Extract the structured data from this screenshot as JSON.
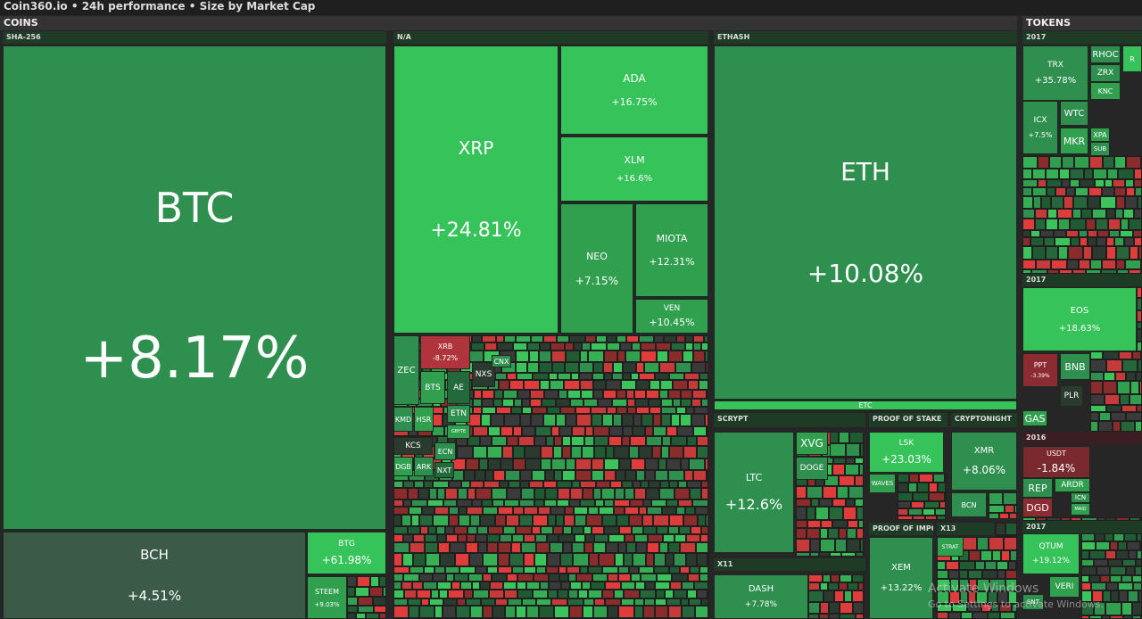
{
  "header": {
    "title": "Coin360.io • 24h performance • Size by Market Cap"
  },
  "sections": [
    {
      "label": "COINS"
    },
    {
      "label": "TOKENS"
    }
  ],
  "groups": [
    {
      "label": "SHA-256"
    },
    {
      "label": "N/A"
    },
    {
      "label": "ETHASH"
    },
    {
      "label": "SCRYPT"
    },
    {
      "label": "PROOF OF STAKE"
    },
    {
      "label": "CRYPTONIGHT"
    },
    {
      "label": "X11"
    },
    {
      "label": "PROOF OF IMPOR"
    },
    {
      "label": "X13"
    },
    {
      "label": "2017"
    },
    {
      "label": "2017"
    },
    {
      "label": "2016"
    },
    {
      "label": "2017"
    }
  ],
  "tiles": [
    {
      "name": "BTC",
      "change": "+8.17%"
    },
    {
      "name": "BCH",
      "change": "+4.51%"
    },
    {
      "name": "BTG",
      "change": "+61.98%"
    },
    {
      "name": "STEEM",
      "change": "+9.03%"
    },
    {
      "name": "XRP",
      "change": "+24.81%"
    },
    {
      "name": "ADA",
      "change": "+16.75%"
    },
    {
      "name": "XLM",
      "change": "+16.6%"
    },
    {
      "name": "NEO",
      "change": "+7.15%"
    },
    {
      "name": "MIOTA",
      "change": "+12.31%"
    },
    {
      "name": "VEN",
      "change": "+10.45%"
    },
    {
      "name": "XRB",
      "change": "-8.72%"
    },
    {
      "name": "ZEC"
    },
    {
      "name": "BTS"
    },
    {
      "name": "AE"
    },
    {
      "name": "NXS"
    },
    {
      "name": "CNX"
    },
    {
      "name": "KMD"
    },
    {
      "name": "HSR"
    },
    {
      "name": "ETN"
    },
    {
      "name": "GBYTE"
    },
    {
      "name": "KCS"
    },
    {
      "name": "ECN"
    },
    {
      "name": "DGB"
    },
    {
      "name": "ARK"
    },
    {
      "name": "NXT"
    },
    {
      "name": "ETH",
      "change": "+10.08%"
    },
    {
      "name": "ETC"
    },
    {
      "name": "LTC",
      "change": "+12.6%"
    },
    {
      "name": "XVG"
    },
    {
      "name": "DOGE"
    },
    {
      "name": "LSK",
      "change": "+23.03%"
    },
    {
      "name": "WAVES"
    },
    {
      "name": "XMR",
      "change": "+8.06%"
    },
    {
      "name": "BCN"
    },
    {
      "name": "DASH",
      "change": "+7.78%"
    },
    {
      "name": "XEM",
      "change": "+13.22%"
    },
    {
      "name": "STRAT"
    },
    {
      "name": "TRX",
      "change": "+35.78%"
    },
    {
      "name": "RHOC"
    },
    {
      "name": "ZRX"
    },
    {
      "name": "KNC"
    },
    {
      "name": "R"
    },
    {
      "name": "ICX",
      "change": "+7.5%"
    },
    {
      "name": "WTC"
    },
    {
      "name": "MKR"
    },
    {
      "name": "XPA"
    },
    {
      "name": "SUB"
    },
    {
      "name": "EOS",
      "change": "+18.63%"
    },
    {
      "name": "PPT",
      "change": "-3.39%"
    },
    {
      "name": "BNB"
    },
    {
      "name": "PLR"
    },
    {
      "name": "GAS"
    },
    {
      "name": "USDT",
      "change": "-1.84%"
    },
    {
      "name": "REP"
    },
    {
      "name": "DGD"
    },
    {
      "name": "ARDR"
    },
    {
      "name": "ICN"
    },
    {
      "name": "MAID"
    },
    {
      "name": "QTUM",
      "change": "+19.12%"
    },
    {
      "name": "SNT"
    },
    {
      "name": "VERI"
    }
  ],
  "watermark": {
    "title": "Activate Windows",
    "subtitle": "Go to Settings to activate Windows."
  }
}
